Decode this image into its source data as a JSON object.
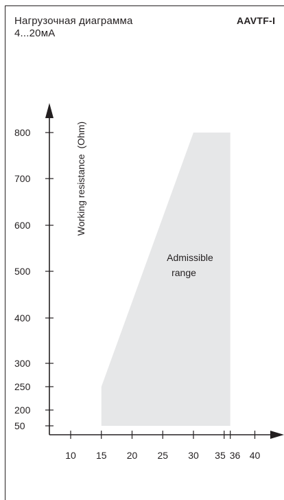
{
  "header": {
    "title_line1": "Нагрузочная диаграмма",
    "title_line2": "4...20мА",
    "model": "AAVTF-I"
  },
  "chart_data": {
    "type": "area",
    "title": "Нагрузочная диаграмма 4...20мА",
    "ylabel": "Working resistance  (Ohm)",
    "xlabel": "",
    "x_ticks": [
      10,
      15,
      20,
      25,
      30,
      35,
      36,
      40
    ],
    "y_ticks": [
      50,
      200,
      250,
      300,
      400,
      500,
      600,
      700,
      800
    ],
    "region": {
      "name": "Admissible range",
      "label_lines": [
        "Admissible",
        "range"
      ],
      "polygon": [
        [
          15,
          50
        ],
        [
          15,
          250
        ],
        [
          30,
          800
        ],
        [
          36,
          800
        ],
        [
          36,
          50
        ]
      ],
      "color": "#e6e7e8"
    },
    "grid": false,
    "axis_color": "#231f20"
  }
}
